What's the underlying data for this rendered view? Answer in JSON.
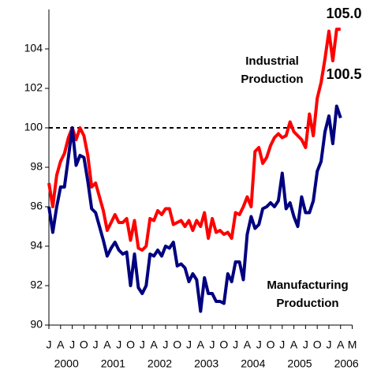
{
  "chart_data": {
    "type": "line",
    "categories": [
      "J",
      null,
      null,
      "A",
      null,
      null,
      "J",
      null,
      null,
      "O",
      null,
      null,
      "J",
      null,
      null,
      "A",
      null,
      null,
      "J",
      null,
      null,
      "O",
      null,
      null,
      "J",
      null,
      null,
      "A",
      null,
      null,
      "J",
      null,
      null,
      "O",
      null,
      null,
      "J",
      null,
      null,
      "A",
      null,
      null,
      "J",
      null,
      null,
      "O",
      null,
      null,
      "J",
      null,
      null,
      "A",
      null,
      null,
      "J",
      null,
      null,
      "O",
      null,
      null,
      "J",
      null,
      null,
      "A",
      null,
      null,
      "J",
      null,
      null,
      "O",
      null,
      null,
      "J",
      null,
      null,
      "A",
      null,
      null,
      "M"
    ],
    "years": [
      "2000",
      "2001",
      "2002",
      "2003",
      "2004",
      "2005",
      "2006"
    ],
    "series": [
      {
        "name": "Industrial Production",
        "color": "#ff0000",
        "values": [
          97.2,
          96.0,
          97.6,
          98.3,
          98.7,
          99.5,
          100.0,
          99.4,
          100.0,
          99.6,
          98.6,
          97.0,
          97.2,
          96.5,
          95.8,
          94.8,
          95.2,
          95.6,
          95.2,
          95.2,
          95.4,
          94.3,
          95.3,
          93.9,
          93.8,
          94.0,
          95.4,
          95.3,
          95.8,
          95.6,
          95.9,
          95.9,
          95.1,
          95.2,
          95.3,
          95.0,
          95.3,
          94.8,
          95.3,
          95.0,
          95.7,
          94.4,
          95.4,
          94.7,
          94.8,
          94.6,
          94.7,
          94.4,
          95.7,
          95.6,
          96.0,
          96.5,
          96.0,
          98.8,
          99.0,
          98.2,
          98.5,
          99.1,
          99.5,
          99.7,
          99.5,
          99.6,
          100.3,
          99.8,
          99.6,
          99.4,
          99.0,
          100.7,
          99.6,
          101.5,
          102.3,
          103.5,
          104.9,
          103.4,
          105.0,
          105.0,
          null,
          null,
          null
        ]
      },
      {
        "name": "Manufacturing Production",
        "color": "#000080",
        "values": [
          96.0,
          94.7,
          96.0,
          97.0,
          97.0,
          98.5,
          100.0,
          98.1,
          98.6,
          98.5,
          97.3,
          95.9,
          95.7,
          95.0,
          94.3,
          93.5,
          93.9,
          94.2,
          93.8,
          93.6,
          93.7,
          92.0,
          93.6,
          91.9,
          91.6,
          92.0,
          93.6,
          93.5,
          93.8,
          93.5,
          94.0,
          93.9,
          94.2,
          93.0,
          93.1,
          92.9,
          92.2,
          92.6,
          92.3,
          90.7,
          92.4,
          91.6,
          91.6,
          91.2,
          91.2,
          91.1,
          92.6,
          92.2,
          93.2,
          93.2,
          92.3,
          94.6,
          95.5,
          94.9,
          95.1,
          95.9,
          96.0,
          96.2,
          96.0,
          96.3,
          97.7,
          95.9,
          96.2,
          95.5,
          95.0,
          96.5,
          95.7,
          95.7,
          96.3,
          97.8,
          98.3,
          99.8,
          100.6,
          99.2,
          101.1,
          100.5,
          null,
          null,
          null
        ]
      }
    ],
    "annotations": [
      {
        "text": "105.0",
        "color": "#ff0000"
      },
      {
        "text": "100.5",
        "color": "#000080"
      },
      {
        "lines": [
          "Industrial",
          "Production"
        ],
        "color": "#ff0000"
      },
      {
        "lines": [
          "Manufacturing",
          "Production"
        ],
        "color": "#000080"
      }
    ],
    "reference_line": 100,
    "ylim": [
      90,
      106
    ],
    "yticks": [
      90,
      92,
      94,
      96,
      98,
      100,
      102,
      104
    ]
  }
}
